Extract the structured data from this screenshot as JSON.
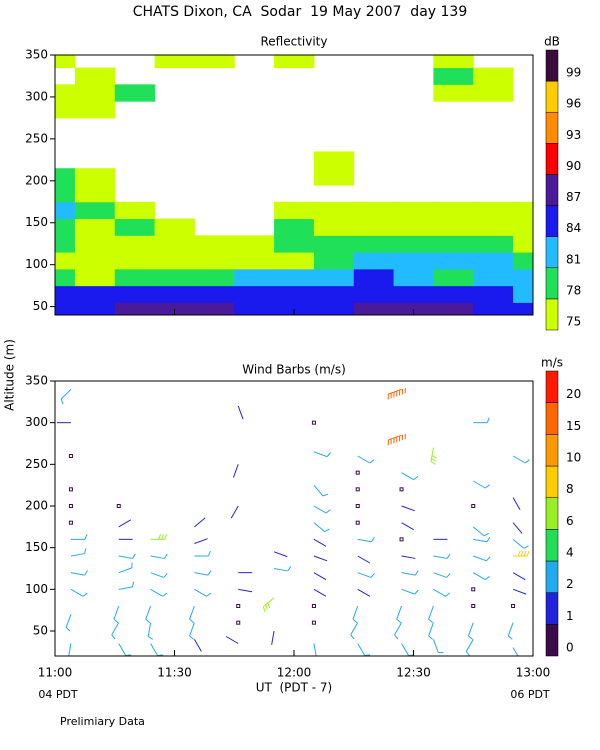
{
  "title": "CHATS Dixon, CA  Sodar  19 May 2007  day 139",
  "ylabel": "Altitude (m)",
  "footnote": "Prelimiary Data",
  "chart_data": [
    {
      "type": "contour",
      "title": "Reflectivity",
      "x": [
        660,
        670,
        680,
        690,
        700,
        710,
        720,
        730,
        740,
        750,
        760,
        770,
        780
      ],
      "y": [
        45,
        65,
        85,
        105,
        125,
        145,
        165,
        185,
        205,
        225,
        245,
        265,
        285,
        305,
        325,
        345
      ],
      "z": [
        [
          85,
          85,
          88,
          88,
          88,
          85,
          85,
          85,
          88,
          88,
          88,
          85,
          85
        ],
        [
          85,
          85,
          85,
          85,
          85,
          85,
          85,
          85,
          85,
          85,
          85,
          85,
          82
        ],
        [
          79,
          76,
          79,
          79,
          79,
          82,
          82,
          82,
          85,
          82,
          79,
          82,
          82
        ],
        [
          76,
          76,
          76,
          76,
          76,
          76,
          76,
          79,
          82,
          82,
          82,
          82,
          79
        ],
        [
          79,
          76,
          76,
          76,
          76,
          76,
          79,
          79,
          79,
          79,
          79,
          79,
          76
        ],
        [
          79,
          76,
          79,
          76,
          null,
          null,
          79,
          76,
          76,
          76,
          76,
          76,
          76
        ],
        [
          82,
          79,
          76,
          null,
          null,
          null,
          76,
          76,
          76,
          76,
          76,
          76,
          76
        ],
        [
          79,
          76,
          null,
          null,
          null,
          null,
          null,
          null,
          null,
          null,
          null,
          null,
          null
        ],
        [
          79,
          76,
          null,
          null,
          null,
          null,
          null,
          76,
          null,
          null,
          null,
          null,
          null
        ],
        [
          null,
          null,
          null,
          null,
          null,
          null,
          null,
          76,
          null,
          null,
          null,
          null,
          null
        ],
        [
          null,
          null,
          null,
          null,
          null,
          null,
          null,
          null,
          null,
          null,
          null,
          null,
          null
        ],
        [
          null,
          null,
          null,
          null,
          null,
          null,
          null,
          null,
          null,
          null,
          null,
          null,
          null
        ],
        [
          76,
          76,
          null,
          null,
          null,
          null,
          null,
          null,
          null,
          null,
          null,
          null,
          null
        ],
        [
          76,
          76,
          79,
          null,
          null,
          null,
          null,
          null,
          null,
          null,
          76,
          76,
          null
        ],
        [
          null,
          76,
          null,
          null,
          null,
          null,
          null,
          null,
          null,
          null,
          79,
          76,
          null
        ],
        [
          76,
          null,
          null,
          76,
          76,
          null,
          76,
          null,
          null,
          null,
          76,
          null,
          null
        ]
      ],
      "xlim": [
        660,
        780
      ],
      "xticks": [
        660,
        690,
        720,
        750,
        780
      ],
      "ylim": [
        40,
        350
      ],
      "yticks": [
        50,
        100,
        150,
        200,
        250,
        300,
        350
      ],
      "colorbar": {
        "label": "dB",
        "levels": [
          75,
          78,
          81,
          84,
          87,
          90,
          93,
          96,
          99
        ],
        "colors": [
          "#ccff00",
          "#20e05a",
          "#22bbff",
          "#1a1aee",
          "#4b1a99",
          "#ff0000",
          "#ff8c00",
          "#ffcc00",
          "#3b0b3b"
        ]
      }
    },
    {
      "type": "barb",
      "title": "Wind Barbs (m/s)",
      "xlabel": "UT  (PDT - 7)",
      "annotations": [
        "04 PDT",
        "06 PDT"
      ],
      "xlim": [
        660,
        780
      ],
      "xticks": [
        {
          "value": 660,
          "label": "11:00"
        },
        {
          "value": 690,
          "label": "11:30"
        },
        {
          "value": 720,
          "label": "12:00"
        },
        {
          "value": 750,
          "label": "12:30"
        },
        {
          "value": 780,
          "label": "13:00"
        }
      ],
      "ylim": [
        20,
        350
      ],
      "yticks": [
        50,
        100,
        150,
        200,
        250,
        300,
        350
      ],
      "colorbar": {
        "label": "m/s",
        "levels": [
          0,
          1,
          2,
          4,
          6,
          8,
          10,
          15,
          20
        ],
        "colors": [
          "#3b0b4b",
          "#2222dd",
          "#22aaee",
          "#22dd55",
          "#99ee22",
          "#ffcc00",
          "#ff9900",
          "#ff6600",
          "#ff1a00"
        ]
      },
      "barbs": [
        {
          "x": 664,
          "y": 340,
          "speed": 2,
          "direction": 225
        },
        {
          "x": 664,
          "y": 300,
          "speed": 1,
          "direction": 270
        },
        {
          "x": 664,
          "y": 260,
          "speed": 0,
          "direction": 0
        },
        {
          "x": 664,
          "y": 220,
          "speed": 0,
          "direction": 0
        },
        {
          "x": 664,
          "y": 200,
          "speed": 0,
          "direction": 0
        },
        {
          "x": 664,
          "y": 180,
          "speed": 0,
          "direction": 0
        },
        {
          "x": 664,
          "y": 160,
          "speed": 2,
          "direction": 90
        },
        {
          "x": 664,
          "y": 140,
          "speed": 2,
          "direction": 80
        },
        {
          "x": 664,
          "y": 120,
          "speed": 2,
          "direction": 100
        },
        {
          "x": 664,
          "y": 100,
          "speed": 2,
          "direction": 120
        },
        {
          "x": 664,
          "y": 70,
          "speed": 2,
          "direction": 200
        },
        {
          "x": 664,
          "y": 35,
          "speed": 2,
          "direction": 190
        },
        {
          "x": 676,
          "y": 200,
          "speed": 0,
          "direction": 0
        },
        {
          "x": 676,
          "y": 175,
          "speed": 1,
          "direction": 60
        },
        {
          "x": 676,
          "y": 160,
          "speed": 1,
          "direction": 90
        },
        {
          "x": 676,
          "y": 140,
          "speed": 2,
          "direction": 100
        },
        {
          "x": 676,
          "y": 120,
          "speed": 2,
          "direction": 70
        },
        {
          "x": 676,
          "y": 100,
          "speed": 2,
          "direction": 80
        },
        {
          "x": 676,
          "y": 80,
          "speed": 2,
          "direction": 200
        },
        {
          "x": 676,
          "y": 60,
          "speed": 2,
          "direction": 210
        },
        {
          "x": 676,
          "y": 35,
          "speed": 2,
          "direction": 150
        },
        {
          "x": 684,
          "y": 160,
          "speed": 6,
          "direction": 90
        },
        {
          "x": 684,
          "y": 140,
          "speed": 2,
          "direction": 100
        },
        {
          "x": 684,
          "y": 120,
          "speed": 2,
          "direction": 110
        },
        {
          "x": 684,
          "y": 100,
          "speed": 2,
          "direction": 120
        },
        {
          "x": 684,
          "y": 80,
          "speed": 2,
          "direction": 200
        },
        {
          "x": 684,
          "y": 60,
          "speed": 2,
          "direction": 190
        },
        {
          "x": 684,
          "y": 35,
          "speed": 2,
          "direction": 150
        },
        {
          "x": 695,
          "y": 175,
          "speed": 1,
          "direction": 50
        },
        {
          "x": 695,
          "y": 155,
          "speed": 1,
          "direction": 70
        },
        {
          "x": 695,
          "y": 140,
          "speed": 2,
          "direction": 90
        },
        {
          "x": 695,
          "y": 120,
          "speed": 2,
          "direction": 100
        },
        {
          "x": 695,
          "y": 100,
          "speed": 2,
          "direction": 120
        },
        {
          "x": 695,
          "y": 80,
          "speed": 2,
          "direction": 200
        },
        {
          "x": 695,
          "y": 60,
          "speed": 2,
          "direction": 200
        },
        {
          "x": 695,
          "y": 40,
          "speed": 1,
          "direction": 150
        },
        {
          "x": 706,
          "y": 320,
          "speed": 1,
          "direction": 160
        },
        {
          "x": 706,
          "y": 250,
          "speed": 1,
          "direction": 200
        },
        {
          "x": 706,
          "y": 200,
          "speed": 1,
          "direction": 210
        },
        {
          "x": 706,
          "y": 120,
          "speed": 1,
          "direction": 90
        },
        {
          "x": 706,
          "y": 100,
          "speed": 1,
          "direction": 100
        },
        {
          "x": 706,
          "y": 80,
          "speed": 0,
          "direction": 0
        },
        {
          "x": 706,
          "y": 60,
          "speed": 0,
          "direction": 0
        },
        {
          "x": 706,
          "y": 35,
          "speed": 1,
          "direction": 300
        },
        {
          "x": 715,
          "y": 145,
          "speed": 1,
          "direction": 110
        },
        {
          "x": 715,
          "y": 125,
          "speed": 2,
          "direction": 100
        },
        {
          "x": 715,
          "y": 90,
          "speed": 6,
          "direction": 230
        },
        {
          "x": 715,
          "y": 50,
          "speed": 1,
          "direction": 190
        },
        {
          "x": 725,
          "y": 300,
          "speed": 0,
          "direction": 0
        },
        {
          "x": 725,
          "y": 265,
          "speed": 2,
          "direction": 110
        },
        {
          "x": 725,
          "y": 225,
          "speed": 2,
          "direction": 140
        },
        {
          "x": 725,
          "y": 200,
          "speed": 2,
          "direction": 120
        },
        {
          "x": 725,
          "y": 180,
          "speed": 2,
          "direction": 130
        },
        {
          "x": 725,
          "y": 160,
          "speed": 1,
          "direction": 120
        },
        {
          "x": 725,
          "y": 140,
          "speed": 1,
          "direction": 110
        },
        {
          "x": 725,
          "y": 120,
          "speed": 1,
          "direction": 120
        },
        {
          "x": 725,
          "y": 100,
          "speed": 1,
          "direction": 120
        },
        {
          "x": 725,
          "y": 80,
          "speed": 0,
          "direction": 0
        },
        {
          "x": 725,
          "y": 60,
          "speed": 0,
          "direction": 0
        },
        {
          "x": 725,
          "y": 35,
          "speed": 2,
          "direction": 170
        },
        {
          "x": 736,
          "y": 260,
          "speed": 2,
          "direction": 120
        },
        {
          "x": 736,
          "y": 240,
          "speed": 0,
          "direction": 0
        },
        {
          "x": 736,
          "y": 220,
          "speed": 0,
          "direction": 0
        },
        {
          "x": 736,
          "y": 200,
          "speed": 0,
          "direction": 0
        },
        {
          "x": 736,
          "y": 180,
          "speed": 0,
          "direction": 0
        },
        {
          "x": 736,
          "y": 160,
          "speed": 2,
          "direction": 100
        },
        {
          "x": 736,
          "y": 140,
          "speed": 1,
          "direction": 120
        },
        {
          "x": 736,
          "y": 120,
          "speed": 2,
          "direction": 110
        },
        {
          "x": 736,
          "y": 100,
          "speed": 1,
          "direction": 120
        },
        {
          "x": 736,
          "y": 80,
          "speed": 2,
          "direction": 200
        },
        {
          "x": 736,
          "y": 60,
          "speed": 2,
          "direction": 210
        },
        {
          "x": 736,
          "y": 35,
          "speed": 2,
          "direction": 150
        },
        {
          "x": 747,
          "y": 340,
          "speed": 15,
          "direction": 250
        },
        {
          "x": 747,
          "y": 285,
          "speed": 15,
          "direction": 250
        },
        {
          "x": 747,
          "y": 240,
          "speed": 2,
          "direction": 120
        },
        {
          "x": 747,
          "y": 220,
          "speed": 0,
          "direction": 0
        },
        {
          "x": 747,
          "y": 200,
          "speed": 1,
          "direction": 110
        },
        {
          "x": 747,
          "y": 180,
          "speed": 1,
          "direction": 120
        },
        {
          "x": 747,
          "y": 160,
          "speed": 0,
          "direction": 0
        },
        {
          "x": 747,
          "y": 140,
          "speed": 1,
          "direction": 100
        },
        {
          "x": 747,
          "y": 120,
          "speed": 2,
          "direction": 100
        },
        {
          "x": 747,
          "y": 100,
          "speed": 2,
          "direction": 110
        },
        {
          "x": 747,
          "y": 80,
          "speed": 2,
          "direction": 200
        },
        {
          "x": 747,
          "y": 60,
          "speed": 2,
          "direction": 210
        },
        {
          "x": 747,
          "y": 35,
          "speed": 2,
          "direction": 150
        },
        {
          "x": 755,
          "y": 270,
          "speed": 6,
          "direction": 190
        },
        {
          "x": 755,
          "y": 160,
          "speed": 1,
          "direction": 90
        },
        {
          "x": 755,
          "y": 140,
          "speed": 2,
          "direction": 100
        },
        {
          "x": 755,
          "y": 120,
          "speed": 2,
          "direction": 110
        },
        {
          "x": 755,
          "y": 100,
          "speed": 2,
          "direction": 120
        },
        {
          "x": 755,
          "y": 80,
          "speed": 2,
          "direction": 200
        },
        {
          "x": 755,
          "y": 60,
          "speed": 2,
          "direction": 200
        },
        {
          "x": 755,
          "y": 40,
          "speed": 2,
          "direction": 160
        },
        {
          "x": 765,
          "y": 300,
          "speed": 2,
          "direction": 90
        },
        {
          "x": 765,
          "y": 230,
          "speed": 2,
          "direction": 120
        },
        {
          "x": 765,
          "y": 200,
          "speed": 0,
          "direction": 0
        },
        {
          "x": 765,
          "y": 175,
          "speed": 2,
          "direction": 130
        },
        {
          "x": 765,
          "y": 160,
          "speed": 2,
          "direction": 100
        },
        {
          "x": 765,
          "y": 140,
          "speed": 2,
          "direction": 110
        },
        {
          "x": 765,
          "y": 120,
          "speed": 2,
          "direction": 120
        },
        {
          "x": 765,
          "y": 100,
          "speed": 0,
          "direction": 0
        },
        {
          "x": 765,
          "y": 80,
          "speed": 0,
          "direction": 0
        },
        {
          "x": 765,
          "y": 60,
          "speed": 2,
          "direction": 200
        },
        {
          "x": 765,
          "y": 40,
          "speed": 2,
          "direction": 210
        },
        {
          "x": 775,
          "y": 260,
          "speed": 2,
          "direction": 120
        },
        {
          "x": 775,
          "y": 210,
          "speed": 1,
          "direction": 150
        },
        {
          "x": 775,
          "y": 180,
          "speed": 1,
          "direction": 140
        },
        {
          "x": 775,
          "y": 160,
          "speed": 2,
          "direction": 130
        },
        {
          "x": 775,
          "y": 140,
          "speed": 8,
          "direction": 90
        },
        {
          "x": 775,
          "y": 120,
          "speed": 1,
          "direction": 120
        },
        {
          "x": 775,
          "y": 100,
          "speed": 1,
          "direction": 110
        },
        {
          "x": 775,
          "y": 80,
          "speed": 0,
          "direction": 0
        },
        {
          "x": 775,
          "y": 60,
          "speed": 2,
          "direction": 200
        },
        {
          "x": 775,
          "y": 30,
          "speed": 2,
          "direction": 150
        }
      ]
    }
  ]
}
